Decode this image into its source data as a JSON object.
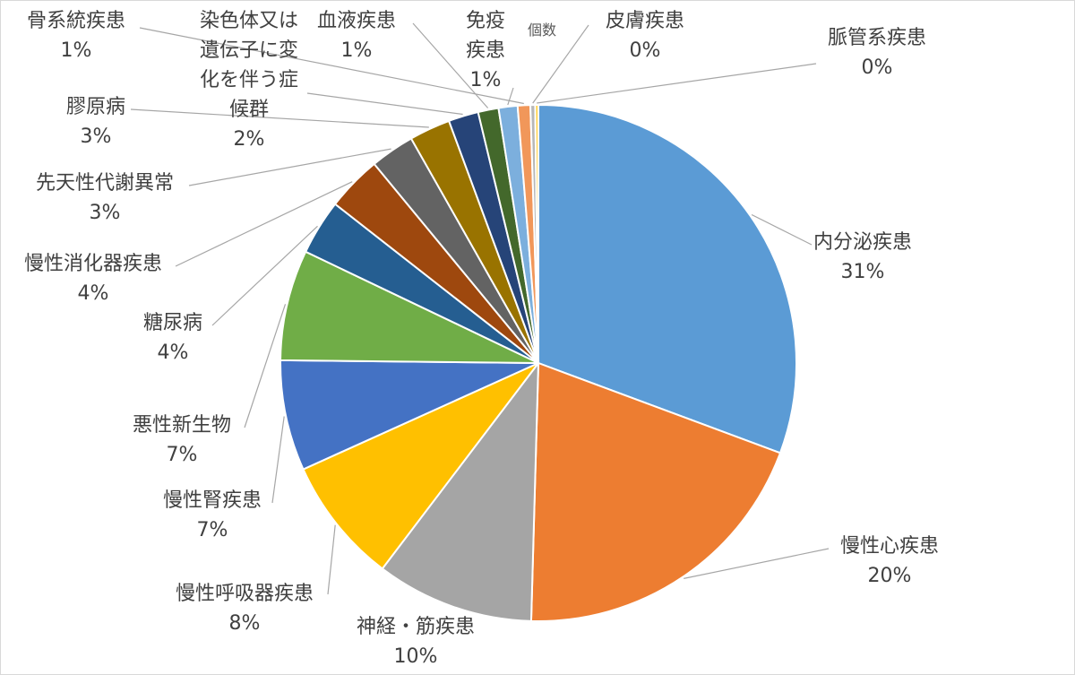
{
  "chart_data": {
    "type": "pie",
    "title": "個数",
    "legend": "none",
    "unit": "%",
    "slices": [
      {
        "name": "内分泌疾患",
        "value": 31,
        "label": "31%",
        "color": "#5B9BD5"
      },
      {
        "name": "慢性心疾患",
        "value": 20,
        "label": "20%",
        "color": "#ED7D31"
      },
      {
        "name": "神経・筋疾患",
        "value": 10,
        "label": "10%",
        "color": "#A5A5A5"
      },
      {
        "name": "慢性呼吸器疾患",
        "value": 8,
        "label": "8%",
        "color": "#FFC000"
      },
      {
        "name": "慢性腎疾患",
        "value": 7,
        "label": "7%",
        "color": "#4472C4"
      },
      {
        "name": "悪性新生物",
        "value": 7,
        "label": "7%",
        "color": "#70AD47"
      },
      {
        "name": "糖尿病",
        "value": 3.5,
        "label": "4%",
        "color": "#255E91"
      },
      {
        "name": "慢性消化器疾患",
        "value": 3.5,
        "label": "4%",
        "color": "#9E480E"
      },
      {
        "name": "先天性代謝異常",
        "value": 2.8,
        "label": "3%",
        "color": "#636363"
      },
      {
        "name": "膠原病",
        "value": 2.6,
        "label": "3%",
        "color": "#997300"
      },
      {
        "name": "染色体又は遺伝子に変化を伴う症候群",
        "value": 1.9,
        "label": "2%",
        "color": "#264478"
      },
      {
        "name": "血液疾患",
        "value": 1.3,
        "label": "1%",
        "color": "#43682B"
      },
      {
        "name": "免疫疾患",
        "value": 1.2,
        "label": "1%",
        "color": "#7CAFDD"
      },
      {
        "name": "骨系統疾患",
        "value": 0.8,
        "label": "1%",
        "color": "#F1975A"
      },
      {
        "name": "皮膚疾患",
        "value": 0.3,
        "label": "0%",
        "color": "#B7B7B7"
      },
      {
        "name": "脈管系疾患",
        "value": 0.2,
        "label": "0%",
        "color": "#FFCD33"
      }
    ]
  }
}
